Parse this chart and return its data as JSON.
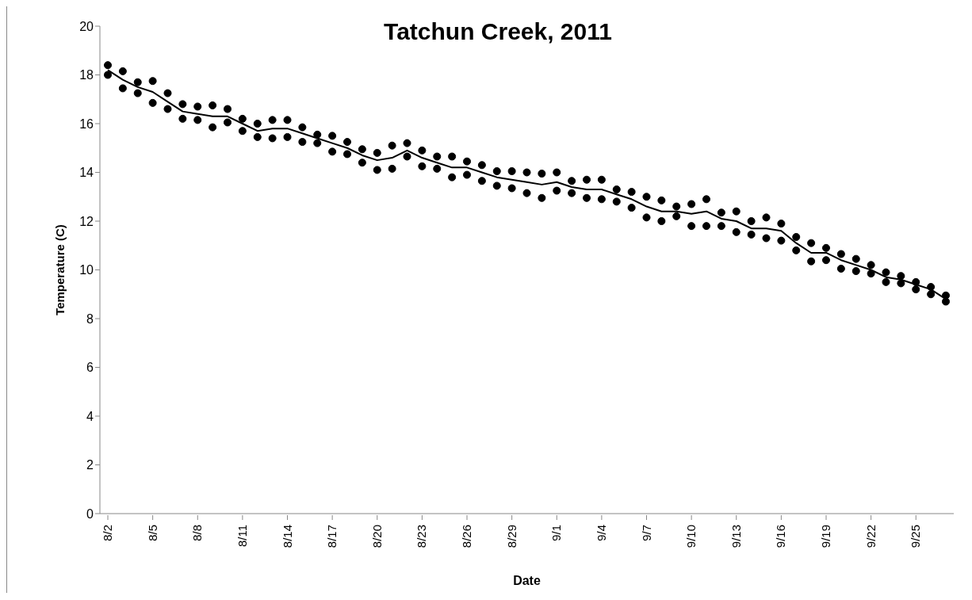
{
  "chart_data": {
    "type": "scatter",
    "title": "Tatchun Creek, 2011",
    "xlabel": "Date",
    "ylabel": "Temperature (C)",
    "categories": [
      "8/2",
      null,
      null,
      "8/5",
      null,
      null,
      "8/8",
      null,
      null,
      "8/11",
      null,
      null,
      "8/14",
      null,
      null,
      "8/17",
      null,
      null,
      "8/20",
      null,
      null,
      "8/23",
      null,
      null,
      "8/26",
      null,
      null,
      "8/29",
      null,
      null,
      "9/1",
      null,
      null,
      "9/4",
      null,
      null,
      "9/7",
      null,
      null,
      "9/10",
      null,
      null,
      "9/13",
      null,
      null,
      "9/16",
      null,
      null,
      "9/19",
      null,
      null,
      "9/22",
      null,
      null,
      "9/25",
      null,
      null
    ],
    "series": [
      {
        "color": "#000000",
        "values": [
          18.4,
          18.15,
          17.7,
          17.75,
          17.25,
          16.8,
          16.7,
          16.75,
          16.6,
          16.2,
          16.0,
          16.15,
          16.15,
          15.85,
          15.55,
          15.5,
          15.25,
          14.95,
          14.8,
          15.1,
          15.2,
          14.9,
          14.65,
          14.65,
          14.45,
          14.3,
          14.05,
          14.05,
          14.0,
          13.95,
          14.0,
          13.65,
          13.7,
          13.7,
          13.3,
          13.2,
          13.0,
          12.85,
          12.6,
          12.7,
          12.9,
          12.35,
          12.4,
          12.0,
          12.15,
          11.9,
          11.35,
          11.1,
          10.9,
          10.65,
          10.45,
          10.2,
          9.9,
          9.75,
          9.5,
          9.3,
          8.95
        ]
      },
      {
        "color": "#000000",
        "values": [
          18.0,
          17.45,
          17.25,
          16.85,
          16.6,
          16.2,
          16.15,
          15.85,
          16.05,
          15.7,
          15.45,
          15.4,
          15.45,
          15.25,
          15.2,
          14.85,
          14.75,
          14.4,
          14.1,
          14.15,
          14.65,
          14.25,
          14.15,
          13.8,
          13.9,
          13.65,
          13.45,
          13.35,
          13.15,
          12.95,
          13.25,
          13.15,
          12.95,
          12.9,
          12.8,
          12.55,
          12.15,
          12.0,
          12.2,
          11.8,
          11.8,
          11.8,
          11.55,
          11.45,
          11.3,
          11.2,
          10.8,
          10.35,
          10.4,
          10.05,
          9.95,
          9.85,
          9.5,
          9.45,
          9.2,
          9.0,
          8.7
        ]
      },
      {
        "type": "line",
        "color": "#000000",
        "marker": "none",
        "values": [
          18.2,
          17.8,
          17.5,
          17.3,
          16.9,
          16.5,
          16.4,
          16.3,
          16.3,
          16.0,
          15.7,
          15.8,
          15.8,
          15.6,
          15.4,
          15.2,
          15.0,
          14.7,
          14.5,
          14.6,
          14.9,
          14.6,
          14.4,
          14.2,
          14.2,
          14.0,
          13.8,
          13.7,
          13.6,
          13.5,
          13.6,
          13.4,
          13.3,
          13.3,
          13.1,
          12.9,
          12.6,
          12.4,
          12.4,
          12.3,
          12.4,
          12.1,
          12.0,
          11.7,
          11.7,
          11.6,
          11.1,
          10.7,
          10.7,
          10.4,
          10.2,
          10.0,
          9.7,
          9.6,
          9.4,
          9.2,
          8.8
        ]
      }
    ],
    "ylim": [
      0,
      20
    ],
    "yticks": [
      0,
      2,
      4,
      6,
      8,
      10,
      12,
      14,
      16,
      18,
      20
    ],
    "grid": false,
    "marker": "circle"
  }
}
